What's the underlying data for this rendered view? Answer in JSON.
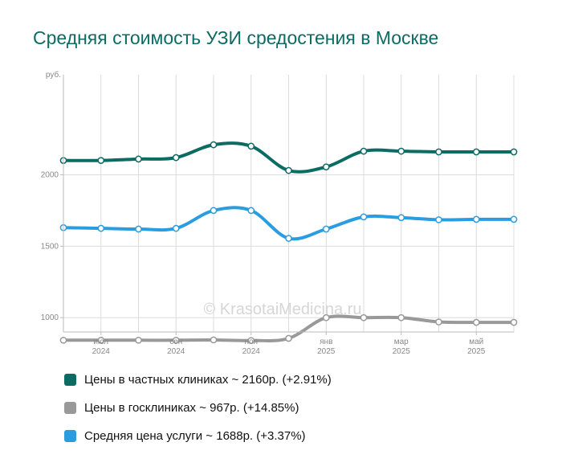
{
  "title": "Средняя стоимость УЗИ средостения в Москве",
  "watermark": "© KrasotaiMedicina.ru",
  "chart_data": {
    "type": "line",
    "title": "Средняя стоимость УЗИ средостения в Москве",
    "ylabel": "руб.",
    "ylim": [
      900,
      2700
    ],
    "yticks": [
      1000,
      1500,
      2000
    ],
    "grid": true,
    "legend_position": "bottom",
    "x": [
      "2024-05",
      "2024-06",
      "2024-07",
      "2024-08",
      "2024-09",
      "2024-10",
      "2024-11",
      "2024-12",
      "2025-01",
      "2025-02",
      "2025-03",
      "2025-04",
      "2025-05"
    ],
    "xticks": [
      {
        "month": "июл",
        "year": "2024"
      },
      {
        "month": "сен",
        "year": "2024"
      },
      {
        "month": "ноя",
        "year": "2024"
      },
      {
        "month": "янв",
        "year": "2025"
      },
      {
        "month": "мар",
        "year": "2025"
      },
      {
        "month": "май",
        "year": "2025"
      }
    ],
    "series": [
      {
        "name": "Цены в частных клиниках",
        "color": "#0c6b63",
        "values": [
          2100,
          2100,
          2110,
          2120,
          2210,
          2200,
          2030,
          2055,
          2165,
          2165,
          2160,
          2160,
          2160
        ]
      },
      {
        "name": "Цены в госклиниках",
        "color": "#999999",
        "values": [
          842,
          842,
          842,
          842,
          844,
          840,
          855,
          1000,
          1000,
          1000,
          970,
          967,
          967
        ]
      },
      {
        "name": "Средняя цена услуги",
        "color": "#2a9de0",
        "values": [
          1630,
          1625,
          1620,
          1625,
          1750,
          1750,
          1555,
          1620,
          1705,
          1700,
          1685,
          1688,
          1688
        ]
      }
    ]
  },
  "legend": [
    {
      "label": "Цены в частных клиниках ~ 2160р. (+2.91%)",
      "color": "#0c6b63"
    },
    {
      "label": "Цены в госклиниках ~ 967р. (+14.85%)",
      "color": "#999999"
    },
    {
      "label": "Средняя цена услуги ~ 1688р. (+3.37%)",
      "color": "#2a9de0"
    }
  ]
}
